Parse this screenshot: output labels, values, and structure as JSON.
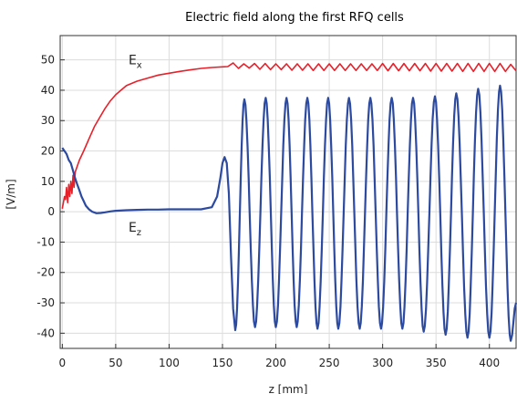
{
  "chart_data": {
    "type": "line",
    "title": "Electric field along the first RFQ cells",
    "xlabel": "z [mm]",
    "ylabel": "[V/m]",
    "xlim": [
      -2,
      425
    ],
    "ylim": [
      -45,
      58
    ],
    "x_ticks": [
      0,
      50,
      100,
      150,
      200,
      250,
      300,
      350,
      400
    ],
    "y_ticks": [
      -40,
      -30,
      -20,
      -10,
      0,
      10,
      20,
      30,
      40,
      50
    ],
    "grid": true,
    "legend": "none",
    "annotations": [
      {
        "text": "E",
        "sub": "x",
        "x": 62,
        "y": 48.5
      },
      {
        "text": "E",
        "sub": "z",
        "x": 62,
        "y": -6.5
      }
    ],
    "series": [
      {
        "color": "#e8202a",
        "points": [
          [
            0,
            1
          ],
          [
            1,
            3
          ],
          [
            2,
            5
          ],
          [
            3,
            4
          ],
          [
            4,
            8
          ],
          [
            5,
            3
          ],
          [
            6,
            9
          ],
          [
            7,
            5
          ],
          [
            8,
            10
          ],
          [
            9,
            6
          ],
          [
            10,
            12
          ],
          [
            11,
            8
          ],
          [
            12,
            13
          ],
          [
            14,
            15
          ],
          [
            16,
            17
          ],
          [
            20,
            20
          ],
          [
            25,
            24
          ],
          [
            30,
            28
          ],
          [
            35,
            31
          ],
          [
            40,
            34
          ],
          [
            45,
            36.5
          ],
          [
            50,
            38.5
          ],
          [
            55,
            40
          ],
          [
            60,
            41.5
          ],
          [
            70,
            43
          ],
          [
            80,
            44
          ],
          [
            90,
            45
          ],
          [
            100,
            45.6
          ],
          [
            110,
            46.2
          ],
          [
            120,
            46.7
          ],
          [
            130,
            47.2
          ],
          [
            140,
            47.5
          ],
          [
            150,
            47.7
          ],
          [
            155,
            47.8
          ],
          [
            160,
            49
          ],
          [
            165,
            47.2
          ],
          [
            170,
            48.7
          ],
          [
            175,
            47.3
          ],
          [
            180,
            48.8
          ],
          [
            185,
            46.9
          ],
          [
            190,
            48.8
          ],
          [
            195,
            46.8
          ],
          [
            200,
            48.7
          ],
          [
            205,
            46.8
          ],
          [
            210,
            48.7
          ],
          [
            215,
            46.6
          ],
          [
            220,
            48.7
          ],
          [
            225,
            46.6
          ],
          [
            230,
            48.7
          ],
          [
            235,
            46.5
          ],
          [
            240,
            48.7
          ],
          [
            245,
            46.5
          ],
          [
            250,
            48.7
          ],
          [
            255,
            46.5
          ],
          [
            260,
            48.7
          ],
          [
            265,
            46.5
          ],
          [
            270,
            48.7
          ],
          [
            275,
            46.5
          ],
          [
            280,
            48.7
          ],
          [
            285,
            46.5
          ],
          [
            290,
            48.7
          ],
          [
            295,
            46.5
          ],
          [
            300,
            48.8
          ],
          [
            305,
            46.4
          ],
          [
            310,
            48.8
          ],
          [
            315,
            46.4
          ],
          [
            320,
            48.8
          ],
          [
            325,
            46.4
          ],
          [
            330,
            48.8
          ],
          [
            335,
            46.4
          ],
          [
            340,
            48.8
          ],
          [
            345,
            46.3
          ],
          [
            350,
            48.8
          ],
          [
            355,
            46.3
          ],
          [
            360,
            48.8
          ],
          [
            365,
            46.3
          ],
          [
            370,
            48.8
          ],
          [
            375,
            46.2
          ],
          [
            380,
            48.8
          ],
          [
            385,
            46.2
          ],
          [
            390,
            48.8
          ],
          [
            395,
            46.2
          ],
          [
            400,
            48.8
          ],
          [
            405,
            46.2
          ],
          [
            410,
            48.8
          ],
          [
            415,
            46.2
          ],
          [
            420,
            48.5
          ],
          [
            425,
            46.4
          ]
        ]
      },
      {
        "color": "#2b4aa0",
        "points": [
          [
            0,
            21
          ],
          [
            2,
            20
          ],
          [
            4,
            19
          ],
          [
            6,
            17
          ],
          [
            8,
            16
          ],
          [
            10,
            13.5
          ],
          [
            12,
            11
          ],
          [
            14,
            9
          ],
          [
            16,
            7
          ],
          [
            18,
            5
          ],
          [
            20,
            3.5
          ],
          [
            22,
            2
          ],
          [
            25,
            0.8
          ],
          [
            28,
            0
          ],
          [
            32,
            -0.5
          ],
          [
            36,
            -0.4
          ],
          [
            40,
            -0.2
          ],
          [
            45,
            0.1
          ],
          [
            50,
            0.3
          ],
          [
            60,
            0.5
          ],
          [
            70,
            0.6
          ],
          [
            80,
            0.7
          ],
          [
            90,
            0.7
          ],
          [
            100,
            0.8
          ],
          [
            110,
            0.8
          ],
          [
            120,
            0.8
          ],
          [
            130,
            0.8
          ],
          [
            140,
            1.5
          ],
          [
            145,
            5
          ],
          [
            148,
            11
          ],
          [
            150,
            16
          ],
          [
            152,
            18
          ],
          [
            154,
            16
          ],
          [
            156,
            6
          ],
          [
            158,
            -15
          ],
          [
            160,
            -32
          ],
          [
            162,
            -39
          ]
        ],
        "wave": {
          "peaks": [
            [
              170.5,
              37
            ],
            [
              190.5,
              37.5
            ],
            [
              210,
              37.5
            ],
            [
              229.5,
              37.5
            ],
            [
              249,
              37.5
            ],
            [
              268.5,
              37.5
            ],
            [
              288.5,
              37.5
            ],
            [
              308.5,
              37.5
            ],
            [
              328.5,
              37.5
            ],
            [
              349,
              38
            ],
            [
              369,
              39
            ],
            [
              389.5,
              40.5
            ],
            [
              410,
              41.5
            ]
          ],
          "troughs": [
            [
              162,
              -39
            ],
            [
              180.5,
              -38
            ],
            [
              200,
              -38
            ],
            [
              219.5,
              -38
            ],
            [
              239,
              -38.5
            ],
            [
              258.5,
              -38.5
            ],
            [
              278.5,
              -38.5
            ],
            [
              298.5,
              -38.5
            ],
            [
              318.5,
              -38.5
            ],
            [
              338.5,
              -39.5
            ],
            [
              359,
              -40.5
            ],
            [
              379.5,
              -41.5
            ],
            [
              400,
              -41.5
            ],
            [
              420,
              -42.5
            ]
          ],
          "end": [
            425,
            -30
          ]
        }
      }
    ]
  }
}
